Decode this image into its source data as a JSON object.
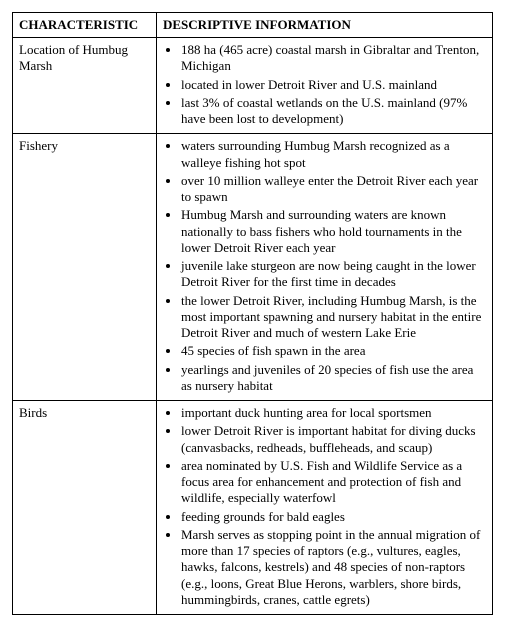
{
  "table": {
    "headers": {
      "col1": "CHARACTERISTIC",
      "col2": "DESCRIPTIVE INFORMATION"
    },
    "rows": [
      {
        "label": "Location of Humbug Marsh",
        "items": [
          "188 ha (465 acre) coastal marsh in Gibraltar and Trenton, Michigan",
          "located in lower Detroit River and U.S. mainland",
          "last 3% of coastal wetlands on the U.S. mainland (97% have been lost to development)"
        ]
      },
      {
        "label": "Fishery",
        "items": [
          "waters surrounding Humbug Marsh recognized as a walleye fishing hot spot",
          "over 10 million walleye enter the Detroit River each year to spawn",
          "Humbug Marsh and surrounding waters are known nationally to bass fishers who hold tournaments in the lower Detroit River each year",
          "juvenile lake sturgeon are now being caught in the lower Detroit River for the first time in decades",
          "the lower Detroit River, including Humbug Marsh, is the most important spawning and nursery habitat in the entire Detroit River and much of western Lake Erie",
          "45 species of fish spawn in the area",
          "yearlings and juveniles of 20 species of fish use the area as nursery habitat"
        ]
      },
      {
        "label": "Birds",
        "items": [
          "important duck hunting area for local sportsmen",
          "lower Detroit River is important habitat for diving ducks (canvasbacks, redheads, buffleheads, and scaup)",
          "area nominated by U.S. Fish and Wildlife Service as a focus area for enhancement and protection of fish and wildlife, especially waterfowl",
          "feeding grounds for bald eagles",
          "Marsh serves as stopping point in the annual migration of more than 17 species of raptors (e.g., vultures, eagles, hawks, falcons, kestrels) and 48 species of non-raptors (e.g., loons, Great Blue Herons, warblers, shore birds, hummingbirds, cranes, cattle egrets)"
        ]
      }
    ]
  }
}
